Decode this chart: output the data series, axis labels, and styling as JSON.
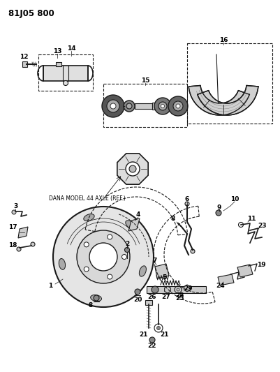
{
  "title_code": "81J05 800",
  "bg_color": "#ffffff",
  "line_color": "#1a1a1a",
  "fig_width": 4.01,
  "fig_height": 5.33,
  "dpi": 100,
  "dana_label": "DANA MODEL 44 AXLE (REF.)"
}
